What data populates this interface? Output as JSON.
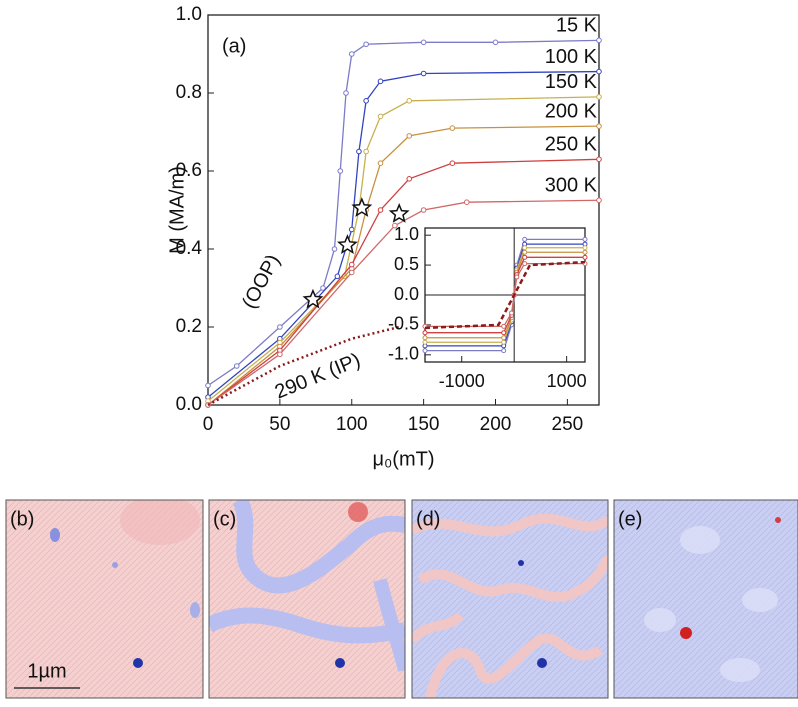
{
  "chart_data": [
    {
      "type": "line",
      "panel_label": "(a)",
      "x_label": "μ₀(mT)",
      "y_label": "M (MA/m)",
      "xlim": [
        0,
        272
      ],
      "ylim": [
        0,
        1.0
      ],
      "xticks": [
        0,
        50,
        100,
        150,
        200,
        250
      ],
      "yticks": [
        {
          "value": 0,
          "label": "0.0"
        },
        0.2,
        0.4,
        0.6,
        0.8,
        {
          "value": 1.0,
          "label": "1.0"
        }
      ],
      "annotation": "(OOP)",
      "series": [
        {
          "name": "15 K",
          "color": "#7b7bc8",
          "x": [
            0,
            20,
            50,
            80,
            88,
            92,
            96,
            100,
            110,
            150,
            200,
            272
          ],
          "values": [
            0.05,
            0.1,
            0.2,
            0.3,
            0.4,
            0.6,
            0.8,
            0.9,
            0.925,
            0.93,
            0.93,
            0.935
          ]
        },
        {
          "name": "100 K",
          "color": "#3344c0",
          "x": [
            0,
            50,
            90,
            100,
            105,
            110,
            120,
            150,
            272
          ],
          "values": [
            0.02,
            0.17,
            0.33,
            0.45,
            0.65,
            0.78,
            0.83,
            0.85,
            0.855
          ]
        },
        {
          "name": "150 K",
          "color": "#c8b050",
          "x": [
            0,
            50,
            95,
            105,
            110,
            120,
            140,
            272
          ],
          "values": [
            0.01,
            0.16,
            0.33,
            0.5,
            0.65,
            0.74,
            0.78,
            0.79
          ]
        },
        {
          "name": "200 K",
          "color": "#c89040",
          "x": [
            0,
            50,
            100,
            110,
            120,
            140,
            170,
            272
          ],
          "values": [
            0,
            0.15,
            0.35,
            0.5,
            0.62,
            0.69,
            0.71,
            0.715
          ]
        },
        {
          "name": "250 K",
          "color": "#d04040",
          "x": [
            0,
            50,
            100,
            120,
            140,
            170,
            272
          ],
          "values": [
            0,
            0.14,
            0.36,
            0.5,
            0.58,
            0.62,
            0.63
          ]
        },
        {
          "name": "300 K",
          "color": "#d06868",
          "x": [
            0,
            50,
            100,
            130,
            150,
            180,
            272
          ],
          "values": [
            0,
            0.13,
            0.34,
            0.46,
            0.5,
            0.52,
            0.525
          ]
        },
        {
          "name": "290 K (IP)",
          "color": "#8b1a1a",
          "style": "dotted",
          "x": [
            0,
            50,
            100,
            133
          ],
          "values": [
            0,
            0.1,
            0.17,
            0.2
          ]
        }
      ],
      "stars": {
        "x": [
          73,
          97,
          107,
          133
        ],
        "values": [
          0.27,
          0.41,
          0.505,
          0.49
        ]
      }
    },
    {
      "type": "line",
      "xlim": [
        -1700,
        1350
      ],
      "ylim": [
        -1.12,
        1.12
      ],
      "xticks": [
        -1000,
        1000
      ],
      "yticks": [
        {
          "value": -1.0,
          "label": "-1.0"
        },
        -0.5,
        {
          "value": 0,
          "label": "0.0"
        },
        0.5,
        {
          "value": 1.0,
          "label": "1.0"
        }
      ],
      "series": [
        {
          "color": "#7b7bc8",
          "x": [
            -1700,
            -200,
            -50,
            0,
            50,
            200,
            1350
          ],
          "values": [
            -0.93,
            -0.93,
            -0.5,
            0,
            0.5,
            0.93,
            0.93
          ]
        },
        {
          "color": "#3344c0",
          "x": [
            -1700,
            -200,
            -50,
            0,
            50,
            200,
            1350
          ],
          "values": [
            -0.85,
            -0.85,
            -0.45,
            0,
            0.45,
            0.85,
            0.85
          ]
        },
        {
          "color": "#c8b050",
          "x": [
            -1700,
            -200,
            -50,
            0,
            50,
            200,
            1350
          ],
          "values": [
            -0.79,
            -0.79,
            -0.42,
            0,
            0.42,
            0.79,
            0.79
          ]
        },
        {
          "color": "#c89040",
          "x": [
            -1700,
            -200,
            -50,
            0,
            50,
            200,
            1350
          ],
          "values": [
            -0.715,
            -0.715,
            -0.38,
            0,
            0.38,
            0.715,
            0.715
          ]
        },
        {
          "color": "#d04040",
          "x": [
            -1700,
            -200,
            -50,
            0,
            50,
            200,
            1350
          ],
          "values": [
            -0.63,
            -0.63,
            -0.34,
            0,
            0.34,
            0.63,
            0.63
          ]
        },
        {
          "color": "#d06868",
          "x": [
            -1700,
            -200,
            -50,
            0,
            50,
            200,
            1350
          ],
          "values": [
            -0.525,
            -0.525,
            -0.3,
            0,
            0.3,
            0.525,
            0.525
          ]
        },
        {
          "color": "#8b1a1a",
          "style": "dotted",
          "x": [
            -1700,
            -300,
            0,
            300,
            1350
          ],
          "values": [
            -0.55,
            -0.5,
            0,
            0.5,
            0.55
          ]
        }
      ]
    }
  ],
  "images": {
    "labels": [
      "(b)",
      "(c)",
      "(d)",
      "(e)"
    ],
    "scale_bar": "1µm"
  }
}
